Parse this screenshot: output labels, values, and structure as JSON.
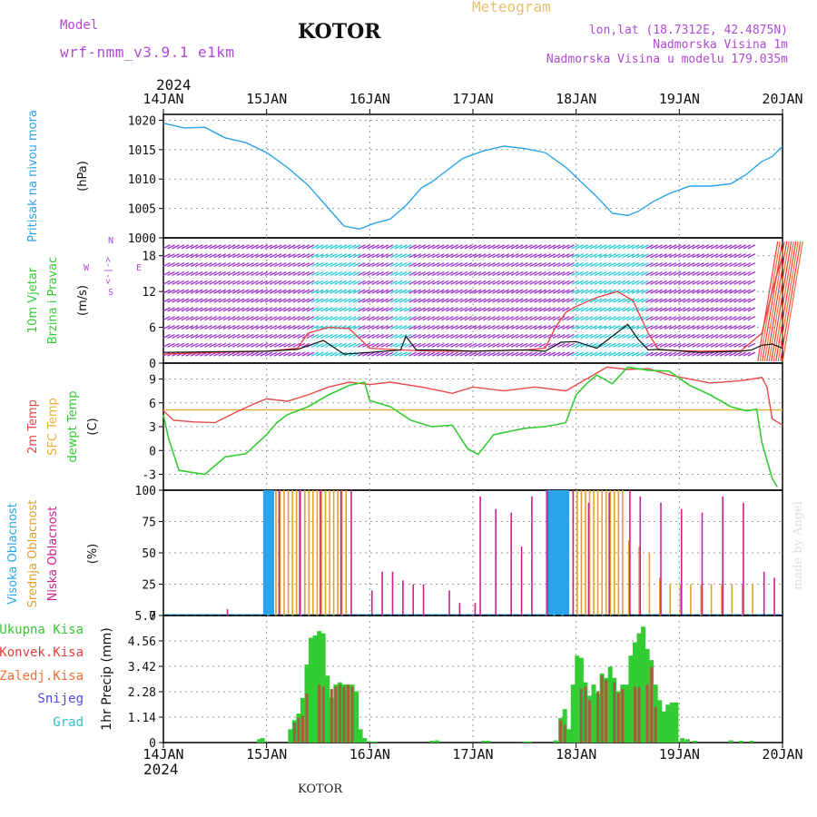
{
  "header": {
    "model_label": "Model",
    "model_name": "wrf-nmm_v3.9.1  e1km",
    "location": "KOTOR",
    "meteogram": "Meteogram",
    "lonlat": "lon,lat (18.7312E, 42.4875N)",
    "elevation": "Nadmorska Visina 1m",
    "model_elevation": "Nadmorska Visina u modelu 179.035m",
    "year": "2024",
    "footer_location": "KOTOR",
    "watermark": "made by Angel"
  },
  "colors": {
    "pressure": "#2aa4e8",
    "wind_purple": "#9a2fd0",
    "wind_cyan": "#21c9d6",
    "gust_red": "#e84040",
    "temp_red": "#e84a4a",
    "sfc_temp": "#e8b03a",
    "dewpt": "#33cc33",
    "high_cloud": "#2aa4e8",
    "mid_cloud": "#e0a030",
    "low_cloud": "#d0208a",
    "total_precip": "#33cc33",
    "conv_precip": "#e84040",
    "frozen": "#f07030",
    "snow": "#4a4af0",
    "hail": "#30c0c0",
    "model_label": "#b04ad6",
    "meteogram_label": "#e8c070"
  },
  "chart_data": [
    {
      "type": "line",
      "id": "pressure",
      "ylabel": "Pritisak na nivou mora",
      "unit": "(hPa)",
      "ylim": [
        1000,
        1021
      ],
      "yticks": [
        1000,
        1005,
        1010,
        1015,
        1020
      ],
      "xticks": [
        "14JAN",
        "15JAN",
        "16JAN",
        "17JAN",
        "18JAN",
        "19JAN",
        "20JAN"
      ],
      "grid": true,
      "series": [
        {
          "x": [
            0,
            0.2,
            0.4,
            0.6,
            0.8,
            1.0,
            1.2,
            1.4,
            1.6,
            1.75,
            1.9,
            2.05,
            2.2,
            2.35,
            2.5,
            2.6,
            2.75,
            2.9,
            3.1,
            3.3,
            3.5,
            3.7,
            3.9,
            4.05,
            4.2,
            4.35,
            4.5,
            4.6,
            4.75,
            4.9,
            5.1,
            5.3,
            5.5,
            5.65,
            5.8,
            5.9,
            6.0
          ],
          "y": [
            1019.5,
            1018.7,
            1018.8,
            1017.0,
            1016.2,
            1014.5,
            1012.0,
            1009.0,
            1005.0,
            1002.0,
            1001.5,
            1002.5,
            1003.2,
            1005.5,
            1008.5,
            1009.5,
            1011.5,
            1013.5,
            1014.8,
            1015.6,
            1015.2,
            1014.5,
            1012.0,
            1009.5,
            1007.0,
            1004.2,
            1003.8,
            1004.5,
            1006.2,
            1007.5,
            1008.8,
            1008.8,
            1009.2,
            1010.8,
            1013.0,
            1013.8,
            1015.6
          ]
        }
      ]
    },
    {
      "type": "line",
      "id": "wind",
      "ylabel": "10m Vjetar",
      "ylabel2": "Brzina i Pravac",
      "unit": "(m/s)",
      "compass": [
        "N",
        "W",
        "<-|->",
        "E",
        "S"
      ],
      "ylim": [
        0,
        21
      ],
      "yticks": [
        0,
        6,
        12,
        18
      ],
      "grid": true,
      "barb_levels": [
        1.5,
        3,
        4.5,
        6,
        7.5,
        9,
        10.5,
        12,
        13.5,
        15,
        16.5,
        18,
        19.5
      ],
      "cyan_intervals": [
        [
          1.45,
          1.9
        ],
        [
          2.2,
          2.4
        ],
        [
          3.95,
          4.7
        ]
      ],
      "series": [
        {
          "name": "speed",
          "x": [
            0,
            0.5,
            1.0,
            1.3,
            1.55,
            1.75,
            2.0,
            2.3,
            2.35,
            2.45,
            2.7,
            3.0,
            3.5,
            3.7,
            3.85,
            4.0,
            4.2,
            4.35,
            4.5,
            4.6,
            4.7,
            4.8,
            5.2,
            5.6,
            5.7,
            5.8,
            5.9,
            6.0
          ],
          "y": [
            1.8,
            1.9,
            2.0,
            2.3,
            3.8,
            1.5,
            1.8,
            2.2,
            4.5,
            2.2,
            2.2,
            2.0,
            2.2,
            2.0,
            3.5,
            3.6,
            2.5,
            4.5,
            6.5,
            4.0,
            2.2,
            2.3,
            1.8,
            2.0,
            2.2,
            3.0,
            3.2,
            2.5
          ]
        },
        {
          "name": "gust",
          "x": [
            0,
            0.5,
            1.0,
            1.3,
            1.4,
            1.6,
            1.8,
            2.0,
            2.3,
            2.6,
            3.0,
            3.5,
            3.7,
            3.8,
            3.9,
            4.0,
            4.2,
            4.4,
            4.55,
            4.7,
            4.8,
            5.2,
            5.6,
            5.8,
            5.9,
            6.0
          ],
          "y": [
            1.5,
            1.8,
            2.0,
            2.5,
            5.0,
            6.0,
            5.8,
            2.5,
            2.2,
            2.0,
            2.0,
            2.2,
            2.5,
            6.0,
            8.5,
            9.5,
            11.0,
            12.0,
            10.5,
            5.0,
            2.2,
            2.0,
            2.1,
            5.0,
            12.0,
            18.0
          ]
        }
      ]
    },
    {
      "type": "line",
      "id": "temperature",
      "ylabel": "2m Temp",
      "ylabel2": "SFC Temp",
      "ylabel3": "dewpt Temp",
      "unit": "(C)",
      "ylim": [
        -5,
        11
      ],
      "yticks": [
        -3,
        0,
        3,
        6,
        9
      ],
      "grid": true,
      "series": [
        {
          "name": "2m Temp",
          "x": [
            0,
            0.1,
            0.3,
            0.5,
            0.7,
            0.9,
            1.0,
            1.2,
            1.4,
            1.6,
            1.8,
            2.0,
            2.2,
            2.5,
            2.8,
            3.0,
            3.3,
            3.6,
            3.9,
            4.1,
            4.3,
            4.5,
            4.7,
            4.9,
            5.1,
            5.3,
            5.6,
            5.8,
            5.85,
            5.9,
            6.0
          ],
          "y": [
            5.0,
            3.8,
            3.6,
            3.5,
            4.8,
            6.0,
            6.5,
            6.2,
            7.0,
            8.0,
            8.6,
            8.3,
            8.6,
            8.0,
            7.2,
            8.0,
            7.5,
            8.0,
            7.5,
            9.0,
            10.5,
            10.2,
            10.3,
            9.5,
            9.0,
            8.5,
            8.8,
            9.2,
            8.0,
            4.0,
            3.2
          ]
        },
        {
          "name": "SFC Temp",
          "x": [
            0,
            6.0
          ],
          "y": [
            5.1,
            5.1
          ]
        },
        {
          "name": "dewpt Temp",
          "x": [
            0,
            0.05,
            0.15,
            0.3,
            0.4,
            0.6,
            0.8,
            0.9,
            1.0,
            1.1,
            1.2,
            1.4,
            1.6,
            1.8,
            1.95,
            2.0,
            2.2,
            2.4,
            2.6,
            2.8,
            2.95,
            3.05,
            3.2,
            3.5,
            3.7,
            3.9,
            4.0,
            4.1,
            4.2,
            4.35,
            4.5,
            4.7,
            4.9,
            5.1,
            5.3,
            5.5,
            5.65,
            5.75,
            5.8,
            5.9,
            5.95
          ],
          "y": [
            4.5,
            1.5,
            -2.5,
            -2.8,
            -3.0,
            -0.8,
            -0.4,
            0.8,
            2.0,
            3.5,
            4.5,
            5.5,
            7.0,
            8.2,
            8.6,
            6.3,
            5.5,
            3.8,
            3.0,
            3.2,
            0.2,
            -0.5,
            2.0,
            2.8,
            3.0,
            3.5,
            7.0,
            8.4,
            9.5,
            8.4,
            10.5,
            10.1,
            10.0,
            8.2,
            7.0,
            5.5,
            5.0,
            5.2,
            1.0,
            -3.5,
            -4.6
          ]
        }
      ]
    },
    {
      "type": "bar",
      "id": "clouds",
      "ylabel": "Visoka Oblacnost",
      "ylabel2": "Srednja Oblacnost",
      "ylabel3": "Niska  Oblacnost",
      "unit": "(%)",
      "ylim": [
        0,
        100
      ],
      "yticks": [
        0,
        25,
        50,
        75,
        100
      ],
      "grid": true,
      "series": [
        {
          "name": "high",
          "x": [
            0.98,
            1.0,
            1.02,
            1.04,
            1.06,
            3.72,
            3.74,
            3.76,
            3.78,
            3.8,
            3.82,
            3.84,
            3.86,
            3.88,
            3.9,
            3.92
          ],
          "y": [
            100,
            100,
            100,
            100,
            100,
            100,
            100,
            100,
            100,
            100,
            100,
            100,
            100,
            100,
            100,
            100
          ]
        },
        {
          "name": "mid",
          "x": [
            1.08,
            1.12,
            1.16,
            1.2,
            1.24,
            1.28,
            1.32,
            1.36,
            1.4,
            1.44,
            1.48,
            1.52,
            1.56,
            1.6,
            1.64,
            1.68,
            1.72,
            1.76,
            3.96,
            4.0,
            4.04,
            4.08,
            4.12,
            4.16,
            4.2,
            4.24,
            4.28,
            4.32,
            4.36,
            4.4,
            4.44,
            4.5,
            4.6,
            4.7,
            4.8,
            4.9,
            5.0,
            5.1,
            5.2,
            5.3,
            5.4,
            5.5,
            5.6,
            5.7
          ],
          "y": [
            100,
            100,
            100,
            100,
            100,
            100,
            100,
            100,
            100,
            100,
            100,
            100,
            100,
            100,
            100,
            100,
            100,
            100,
            100,
            100,
            100,
            100,
            100,
            100,
            100,
            100,
            100,
            100,
            100,
            100,
            100,
            60,
            55,
            50,
            30,
            25,
            25,
            25,
            25,
            25,
            25,
            25,
            25,
            25
          ]
        },
        {
          "name": "low",
          "x": [
            0.6,
            1.1,
            1.3,
            1.5,
            1.7,
            1.8,
            2.0,
            2.1,
            2.2,
            2.3,
            2.4,
            2.5,
            2.75,
            2.85,
            3.0,
            3.05,
            3.2,
            3.35,
            3.45,
            3.55,
            3.7,
            3.95,
            4.1,
            4.3,
            4.5,
            4.6,
            4.8,
            5.0,
            5.2,
            5.4,
            5.6,
            5.8,
            5.9
          ],
          "y": [
            5,
            100,
            100,
            100,
            100,
            100,
            20,
            35,
            35,
            28,
            25,
            25,
            20,
            10,
            10,
            95,
            85,
            82,
            55,
            95,
            100,
            100,
            90,
            98,
            100,
            95,
            90,
            85,
            82,
            95,
            90,
            35,
            30
          ]
        }
      ]
    },
    {
      "type": "bar",
      "id": "precip",
      "ylabel": "1hr Precip",
      "unit": "(mm)",
      "legend": [
        "Ukupna  Kisa",
        "Konvek.Kisa",
        "Zaledj.Kisa",
        "Snijeg",
        "Grad"
      ],
      "ylim": [
        0,
        5.7
      ],
      "yticks": [
        0,
        1.14,
        2.28,
        3.42,
        4.56,
        5.7
      ],
      "grid": true,
      "series": [
        {
          "name": "total",
          "x": [
            0.93,
            0.96,
            1.23,
            1.27,
            1.31,
            1.35,
            1.39,
            1.43,
            1.47,
            1.51,
            1.55,
            1.59,
            1.63,
            1.67,
            1.71,
            1.75,
            1.79,
            1.83,
            1.87,
            1.91,
            1.95,
            2.01,
            2.05,
            2.6,
            2.65,
            3.1,
            3.15,
            3.5,
            3.55,
            3.8,
            3.85,
            3.89,
            3.93,
            3.97,
            4.01,
            4.05,
            4.09,
            4.13,
            4.17,
            4.21,
            4.25,
            4.29,
            4.33,
            4.37,
            4.41,
            4.45,
            4.49,
            4.53,
            4.57,
            4.61,
            4.65,
            4.69,
            4.73,
            4.77,
            4.81,
            4.85,
            4.89,
            4.93,
            4.97,
            5.03,
            5.08,
            5.15,
            5.5,
            5.6,
            5.7
          ],
          "y": [
            0.15,
            0.2,
            0.6,
            1.0,
            1.3,
            2.0,
            3.5,
            4.7,
            4.8,
            5.0,
            4.9,
            3.0,
            2.0,
            2.6,
            2.7,
            2.6,
            2.6,
            2.6,
            2.3,
            0.6,
            0.2,
            0.05,
            0.05,
            0.08,
            0.1,
            0.08,
            0.08,
            0.05,
            0.05,
            0.1,
            1.1,
            1.5,
            0.6,
            2.6,
            3.9,
            3.8,
            2.7,
            2.1,
            2.6,
            2.2,
            3.1,
            2.9,
            3.4,
            2.9,
            2.3,
            2.6,
            2.6,
            3.9,
            4.5,
            4.9,
            5.2,
            4.2,
            3.7,
            2.6,
            1.9,
            1.4,
            1.7,
            1.8,
            1.8,
            0.2,
            0.15,
            0.08,
            0.1,
            0.08,
            0.08
          ]
        },
        {
          "name": "convective",
          "x": [
            1.27,
            1.31,
            1.35,
            1.39,
            1.51,
            1.55,
            1.63,
            1.67,
            1.71,
            1.75,
            1.79,
            1.83,
            3.85,
            3.89,
            4.05,
            4.09,
            4.13,
            4.21,
            4.25,
            4.29,
            4.37,
            4.41,
            4.45,
            4.57,
            4.61,
            4.69,
            4.73,
            4.77
          ],
          "y": [
            0.9,
            1.1,
            1.2,
            2.2,
            2.6,
            2.5,
            2.4,
            2.5,
            2.6,
            2.5,
            2.6,
            2.5,
            1.0,
            0.8,
            2.4,
            2.5,
            1.9,
            2.3,
            3.0,
            2.8,
            2.7,
            2.2,
            2.4,
            2.5,
            2.5,
            2.6,
            3.4,
            1.6
          ]
        }
      ]
    }
  ]
}
